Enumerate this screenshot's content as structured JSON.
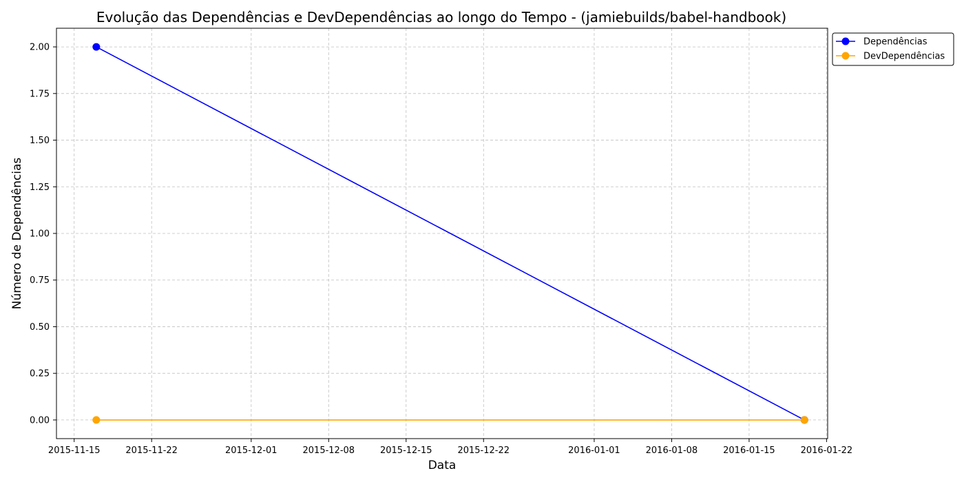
{
  "chart_data": {
    "type": "line",
    "title": "Evolução das Dependências e DevDependências ao longo do Tempo - (jamiebuilds/babel-handbook)",
    "xlabel": "Data",
    "ylabel": "Número de Dependências",
    "x": [
      "2015-11-17",
      "2016-01-20"
    ],
    "series": [
      {
        "name": "Dependências",
        "values": [
          2,
          0
        ],
        "color": "#0000ff"
      },
      {
        "name": "DevDependências",
        "values": [
          0,
          0
        ],
        "color": "#ffa500"
      }
    ],
    "xlim": [
      "2015-11-14",
      "2016-01-22"
    ],
    "ylim": [
      -0.1,
      2.1
    ],
    "xticks": [
      "2015-11-15",
      "2015-11-22",
      "2015-12-01",
      "2015-12-08",
      "2015-12-15",
      "2015-12-22",
      "2016-01-01",
      "2016-01-08",
      "2016-01-15",
      "2016-01-22"
    ],
    "yticks": [
      "0.00",
      "0.25",
      "0.50",
      "0.75",
      "1.00",
      "1.25",
      "1.50",
      "1.75",
      "2.00"
    ],
    "grid": true,
    "legend_position": "outside-top-right"
  }
}
